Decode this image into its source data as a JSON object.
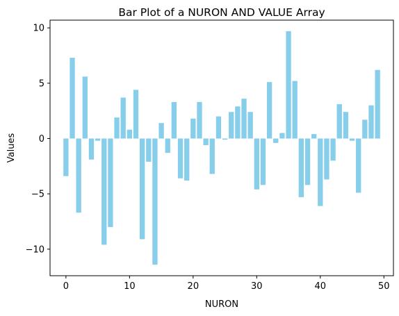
{
  "chart_data": {
    "type": "bar",
    "title": "Bar Plot of a NURON AND VALUE Array",
    "xlabel": "NURON",
    "ylabel": "Values",
    "x": [
      0,
      1,
      2,
      3,
      4,
      5,
      6,
      7,
      8,
      9,
      10,
      11,
      12,
      13,
      14,
      15,
      16,
      17,
      18,
      19,
      20,
      21,
      22,
      23,
      24,
      25,
      26,
      27,
      28,
      29,
      30,
      31,
      32,
      33,
      34,
      35,
      36,
      37,
      38,
      39,
      40,
      41,
      42,
      43,
      44,
      45,
      46,
      47,
      48,
      49
    ],
    "values": [
      -3.4,
      7.3,
      -6.7,
      5.6,
      -1.9,
      -0.2,
      -9.6,
      -8.0,
      1.9,
      3.7,
      0.8,
      4.4,
      -9.1,
      -2.1,
      -11.4,
      1.4,
      -1.3,
      3.3,
      -3.6,
      -3.8,
      1.8,
      3.3,
      -0.6,
      -3.2,
      2.0,
      -0.1,
      2.4,
      2.9,
      3.6,
      2.4,
      -4.6,
      -4.2,
      5.1,
      -0.4,
      0.5,
      9.7,
      5.2,
      -5.3,
      -4.2,
      0.4,
      -6.1,
      -3.7,
      -2.0,
      3.1,
      2.4,
      -0.2,
      -4.9,
      1.7,
      3.0,
      6.2
    ],
    "xlim": [
      -2.5,
      51.5
    ],
    "ylim": [
      -12.4,
      10.7
    ],
    "xticks": [
      0,
      10,
      20,
      30,
      40,
      50
    ],
    "yticks": [
      -10,
      -5,
      0,
      5,
      10
    ],
    "ytick_labels": [
      "−10",
      "−5",
      "0",
      "5",
      "10"
    ],
    "bar_color": "#87ceeb",
    "grid": false,
    "legend": "none"
  }
}
